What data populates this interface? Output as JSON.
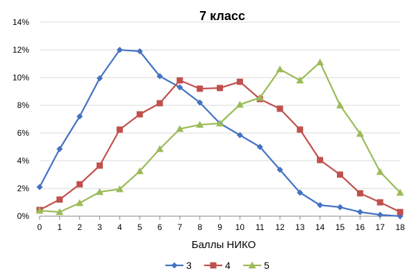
{
  "chart_data": {
    "type": "line",
    "title": "7 класс",
    "xlabel": "Баллы НИКО",
    "ylabel": "",
    "x": [
      0,
      1,
      2,
      3,
      4,
      5,
      6,
      7,
      8,
      9,
      10,
      11,
      12,
      13,
      14,
      15,
      16,
      17,
      18
    ],
    "x_tick_labels": [
      "0",
      "1",
      "2",
      "3",
      "4",
      "5",
      "6",
      "7",
      "8",
      "9",
      "10",
      "11",
      "12",
      "13",
      "14",
      "15",
      "16",
      "17",
      "18"
    ],
    "ylim": [
      0,
      14
    ],
    "y_ticks": [
      0,
      2,
      4,
      6,
      8,
      10,
      12,
      14
    ],
    "y_tick_labels": [
      "0%",
      "2%",
      "4%",
      "6%",
      "8%",
      "10%",
      "12%",
      "14%"
    ],
    "grid": "horizontal",
    "legend_position": "bottom",
    "series": [
      {
        "name": "3",
        "color": "#4472C4",
        "marker": "diamond",
        "values": [
          2.1,
          4.85,
          7.2,
          9.95,
          12.0,
          11.9,
          10.1,
          9.3,
          8.2,
          6.7,
          5.85,
          5.0,
          3.35,
          1.7,
          0.8,
          0.65,
          0.3,
          0.1,
          0.0
        ]
      },
      {
        "name": "4",
        "color": "#C0504D",
        "marker": "square",
        "values": [
          0.45,
          1.2,
          2.3,
          3.65,
          6.25,
          7.35,
          8.15,
          9.8,
          9.2,
          9.25,
          9.7,
          8.45,
          7.75,
          6.25,
          4.05,
          3.0,
          1.65,
          1.0,
          0.3
        ]
      },
      {
        "name": "5",
        "color": "#9BBB59",
        "marker": "triangle",
        "values": [
          0.4,
          0.3,
          0.95,
          1.75,
          1.95,
          3.25,
          4.85,
          6.3,
          6.6,
          6.7,
          8.05,
          8.55,
          10.6,
          9.8,
          11.1,
          8.0,
          5.95,
          3.2,
          1.7
        ]
      }
    ]
  }
}
